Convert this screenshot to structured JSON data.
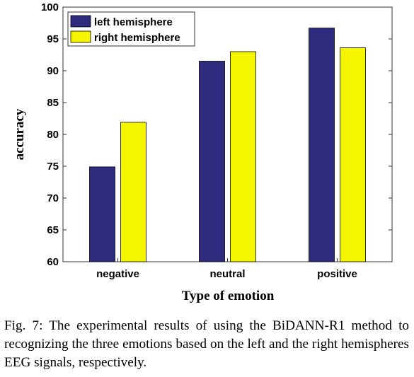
{
  "chart_data": {
    "type": "bar",
    "title": "",
    "xlabel": "Type of emotion",
    "ylabel": "accuracy",
    "categories": [
      "negative",
      "neutral",
      "positive"
    ],
    "series": [
      {
        "name": "left hemisphere",
        "color": "#2e2a7e",
        "values": [
          74.9,
          91.5,
          96.7
        ]
      },
      {
        "name": "right hemisphere",
        "color": "#f5f500",
        "values": [
          81.9,
          93.0,
          93.6
        ]
      }
    ],
    "ylim": [
      60,
      100
    ],
    "yticks": [
      "60",
      "65",
      "70",
      "75",
      "80",
      "85",
      "90",
      "95",
      "100"
    ],
    "grid": false,
    "legend_position": "top-left"
  },
  "caption": "Fig. 7: The experimental results of using the BiDANN-R1 method to recognizing the three emotions based on the left and the right hemispheres EEG signals, respectively."
}
